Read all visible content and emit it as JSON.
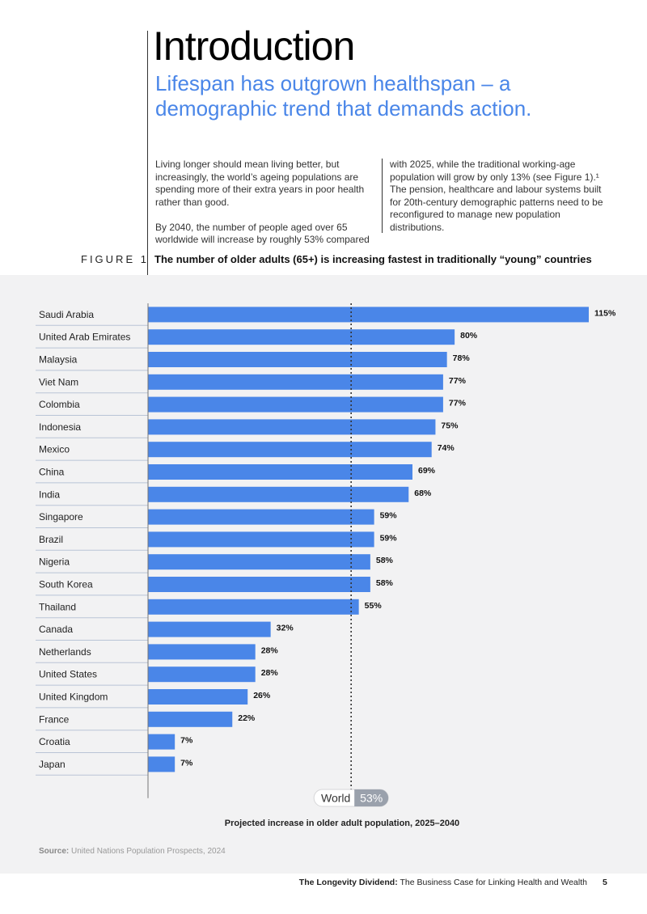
{
  "header": {
    "title": "Introduction",
    "subtitle": "Lifespan has outgrown healthspan – a demographic trend that demands action."
  },
  "body_text": {
    "col1_p1": "Living longer should mean living better, but increasingly, the world’s ageing populations are spending more of their extra years in poor health rather than good.",
    "col1_p2": "By 2040, the number of people aged over 65 worldwide will increase by roughly 53% compared",
    "col2_p1": "with 2025, while the traditional working-age population will grow by only 13% (see Figure 1).¹ The pension, healthcare and labour systems built for 20th-century demographic patterns need to be reconfigured to manage new population distributions."
  },
  "figure": {
    "label": "FIGURE 1",
    "title": "The number of older adults (65+) is increasing fastest in traditionally “young” countries"
  },
  "chart_data": {
    "type": "bar",
    "orientation": "horizontal",
    "categories": [
      "Saudi Arabia",
      "United Arab Emirates",
      "Malaysia",
      "Viet Nam",
      "Colombia",
      "Indonesia",
      "Mexico",
      "China",
      "India",
      "Singapore",
      "Brazil",
      "Nigeria",
      "South Korea",
      "Thailand",
      "Canada",
      "Netherlands",
      "United States",
      "United Kingdom",
      "France",
      "Croatia",
      "Japan"
    ],
    "values": [
      115,
      80,
      78,
      77,
      77,
      75,
      74,
      69,
      68,
      59,
      59,
      58,
      58,
      55,
      32,
      28,
      28,
      26,
      22,
      7,
      7
    ],
    "value_labels": [
      "115%",
      "80%",
      "78%",
      "77%",
      "77%",
      "75%",
      "74%",
      "69%",
      "68%",
      "59%",
      "59%",
      "58%",
      "58%",
      "55%",
      "32%",
      "28%",
      "28%",
      "26%",
      "22%",
      "7%",
      "7%"
    ],
    "reference_line": {
      "label": "World",
      "value": 53,
      "value_label": "53%"
    },
    "xlabel": "Projected increase in older adult population, 2025–2040",
    "ylabel": "",
    "xlim": [
      0,
      115
    ],
    "bar_color": "#4a86e8",
    "grid": false
  },
  "source": {
    "label": "Source:",
    "text": "United Nations Population Prospects, 2024"
  },
  "footer": {
    "doc_title_bold": "The Longevity Dividend:",
    "doc_title_rest": "The Business Case for Linking Health and Wealth",
    "page_number": "5"
  }
}
